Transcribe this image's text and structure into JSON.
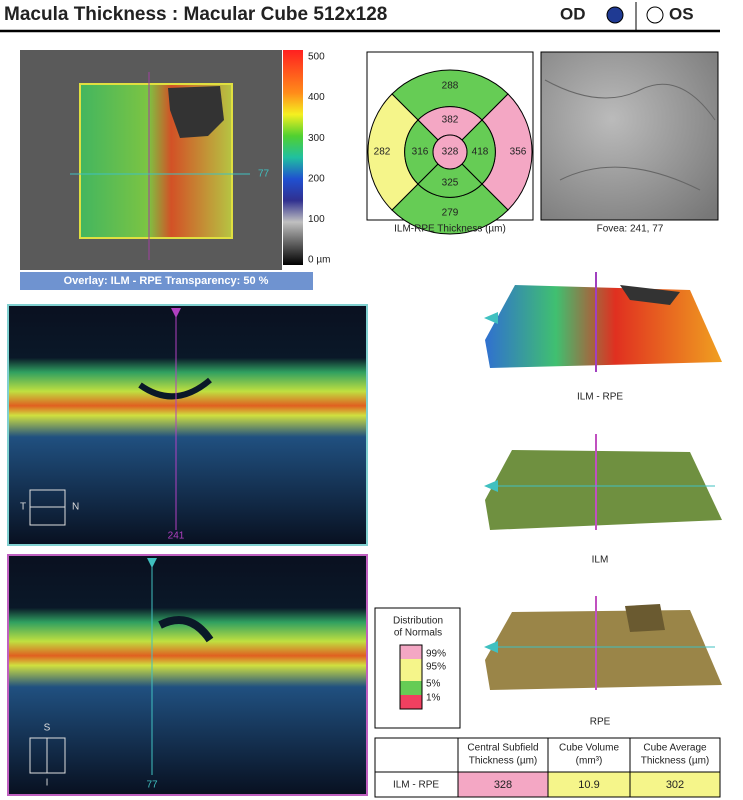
{
  "header": {
    "title": "Macula Thickness : Macular Cube 512x128",
    "od": "OD",
    "os": "OS"
  },
  "thickness_map": {
    "scale_labels": [
      500,
      400,
      300,
      200,
      100,
      "0 µm"
    ],
    "marker": 77,
    "overlay_caption": "Overlay: ILM - RPE  Transparency: 50 %"
  },
  "etdrs_grid": {
    "outer_superior": 288,
    "outer_temporal": 282,
    "outer_nasal": 356,
    "outer_inferior": 279,
    "inner_superior": 382,
    "inner_temporal": 316,
    "inner_nasal": 418,
    "inner_inferior": 325,
    "center": 328,
    "caption": "ILM-RPE Thickness (µm)"
  },
  "fundus": {
    "caption": "Fovea: 241, 77"
  },
  "bscan_horizontal": {
    "position_label": 241,
    "left": "T",
    "right": "N"
  },
  "bscan_vertical": {
    "position_label": 77,
    "top": "S",
    "bottom": "I"
  },
  "surfaces": [
    "ILM - RPE",
    "ILM",
    "RPE"
  ],
  "legend": {
    "title": [
      "Distribution",
      "of Normals"
    ],
    "items": [
      "99%",
      "95%",
      "5%",
      "1%"
    ]
  },
  "table": {
    "headers": [
      [
        "Central Subfield",
        "Thickness (µm)"
      ],
      [
        "Cube Volume",
        "(mm³)"
      ],
      [
        "Cube Average",
        "Thickness (µm)"
      ]
    ],
    "rows": [
      [
        "ILM - RPE",
        328,
        10.9,
        302
      ]
    ]
  }
}
